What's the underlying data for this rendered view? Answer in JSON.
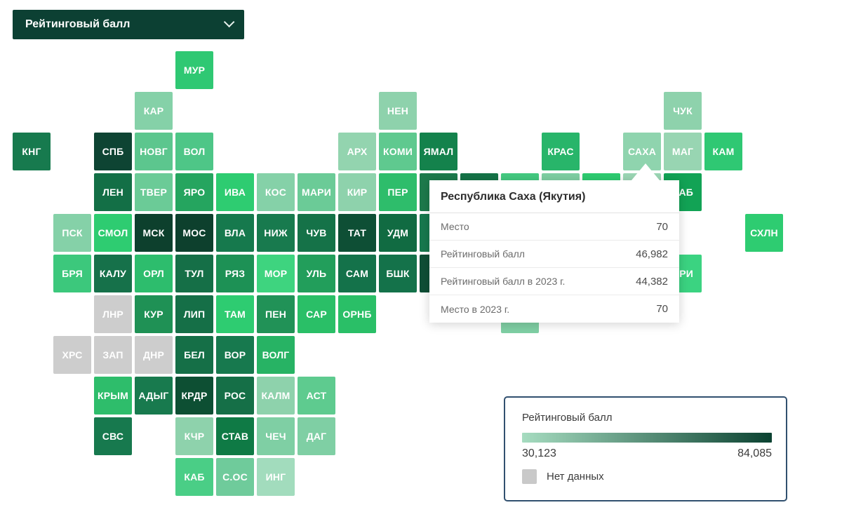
{
  "dropdown": {
    "label": "Рейтинговый балл"
  },
  "tooltip": {
    "title": "Республика Саха (Якутия)",
    "rows": [
      {
        "label": "Место",
        "value": "70"
      },
      {
        "label": "Рейтинговый балл",
        "value": "46,982"
      },
      {
        "label": "Рейтинговый балл в 2023 г.",
        "value": "44,382"
      },
      {
        "label": "Место в 2023 г.",
        "value": "70"
      }
    ]
  },
  "legend": {
    "title": "Рейтинговый балл",
    "min_label": "30,123",
    "max_label": "84,085",
    "no_data_label": "Нет данных",
    "gradient_start": "#a6dcc0",
    "gradient_end": "#0b4231",
    "no_data_color": "#c9c9c9"
  },
  "chart_data": {
    "type": "heatmap",
    "subtype": "tile-cartogram",
    "title": "Рейтинговый балл",
    "colorscale": {
      "min": 30123,
      "max": 84085,
      "min_label": "30,123",
      "max_label": "84,085",
      "start_color": "#a6dcc0",
      "end_color": "#0b4231",
      "no_data_color": "#c9c9c9"
    },
    "selected_region": {
      "name": "Республика Саха (Якутия)",
      "place": "70",
      "score": "46,982",
      "score_2023": "44,382",
      "place_2023": "70"
    },
    "regions": [
      {
        "code": "МУР",
        "col": 4,
        "row": 0,
        "color": "#2fc873"
      },
      {
        "code": "КАР",
        "col": 3,
        "row": 1,
        "color": "#85d1a8"
      },
      {
        "code": "НЕН",
        "col": 9,
        "row": 1,
        "color": "#8ed2ac"
      },
      {
        "code": "ЧУК",
        "col": 16,
        "row": 1,
        "color": "#8ed2ac"
      },
      {
        "code": "КНГ",
        "col": 0,
        "row": 2,
        "color": "#177a4e"
      },
      {
        "code": "СПБ",
        "col": 2,
        "row": 2,
        "color": "#0e4433"
      },
      {
        "code": "НОВГ",
        "col": 3,
        "row": 2,
        "color": "#5cc68e"
      },
      {
        "code": "ВОЛ",
        "col": 4,
        "row": 2,
        "color": "#4ec687"
      },
      {
        "code": "АРХ",
        "col": 8,
        "row": 2,
        "color": "#93d4af"
      },
      {
        "code": "КОМИ",
        "col": 9,
        "row": 2,
        "color": "#5fc98f"
      },
      {
        "code": "ЯМАЛ",
        "col": 10,
        "row": 2,
        "color": "#14824c"
      },
      {
        "code": "КРАС",
        "col": 13,
        "row": 2,
        "color": "#28b56a"
      },
      {
        "code": "САХА",
        "col": 15,
        "row": 2,
        "color": "#8fd4ae"
      },
      {
        "code": "МАГ",
        "col": 16,
        "row": 2,
        "color": "#98d5b2"
      },
      {
        "code": "КАМ",
        "col": 17,
        "row": 2,
        "color": "#2fc873"
      },
      {
        "code": "ЛЕН",
        "col": 2,
        "row": 3,
        "color": "#136f46"
      },
      {
        "code": "ТВЕР",
        "col": 3,
        "row": 3,
        "color": "#6bcb97"
      },
      {
        "code": "ЯРО",
        "col": 4,
        "row": 3,
        "color": "#25a55f"
      },
      {
        "code": "ИВА",
        "col": 5,
        "row": 3,
        "color": "#2ecc71"
      },
      {
        "code": "КОС",
        "col": 6,
        "row": 3,
        "color": "#85d1a8"
      },
      {
        "code": "МАРИ",
        "col": 7,
        "row": 3,
        "color": "#6bcb97"
      },
      {
        "code": "КИР",
        "col": 8,
        "row": 3,
        "color": "#8ed2ac"
      },
      {
        "code": "ПЕР",
        "col": 9,
        "row": 3,
        "color": "#2ebd6b"
      },
      {
        "code": "",
        "col": 10,
        "row": 3,
        "color": "#1d7a4c"
      },
      {
        "code": "",
        "col": 11,
        "row": 3,
        "color": "#157347"
      },
      {
        "code": "",
        "col": 12,
        "row": 3,
        "color": "#44ca81"
      },
      {
        "code": "",
        "col": 13,
        "row": 3,
        "color": "#7fd0a3"
      },
      {
        "code": "",
        "col": 14,
        "row": 3,
        "color": "#2ecc71"
      },
      {
        "code": "",
        "col": 15,
        "row": 3,
        "color": "#9cd7b5"
      },
      {
        "code": "ХАБ",
        "col": 16,
        "row": 3,
        "color": "#12a355"
      },
      {
        "code": "ПСК",
        "col": 1,
        "row": 4,
        "color": "#85d1a8"
      },
      {
        "code": "СМОЛ",
        "col": 2,
        "row": 4,
        "color": "#2ecc71"
      },
      {
        "code": "МСК",
        "col": 3,
        "row": 4,
        "color": "#0d402d"
      },
      {
        "code": "МОС",
        "col": 4,
        "row": 4,
        "color": "#0d402d"
      },
      {
        "code": "ВЛА",
        "col": 5,
        "row": 4,
        "color": "#16794d"
      },
      {
        "code": "НИЖ",
        "col": 6,
        "row": 4,
        "color": "#187a4e"
      },
      {
        "code": "ЧУВ",
        "col": 7,
        "row": 4,
        "color": "#157248"
      },
      {
        "code": "ТАТ",
        "col": 8,
        "row": 4,
        "color": "#0e4f35"
      },
      {
        "code": "УДМ",
        "col": 9,
        "row": 4,
        "color": "#116b42"
      },
      {
        "code": "",
        "col": 10,
        "row": 4,
        "color": "#17794e"
      },
      {
        "code": "СХЛН",
        "col": 18,
        "row": 4,
        "color": "#2ecc71"
      },
      {
        "code": "БРЯ",
        "col": 1,
        "row": 5,
        "color": "#3cc87c"
      },
      {
        "code": "КАЛУ",
        "col": 2,
        "row": 5,
        "color": "#16714a"
      },
      {
        "code": "ОРЛ",
        "col": 3,
        "row": 5,
        "color": "#2dbd6d"
      },
      {
        "code": "ТУЛ",
        "col": 4,
        "row": 5,
        "color": "#156f47"
      },
      {
        "code": "РЯЗ",
        "col": 5,
        "row": 5,
        "color": "#1d9155"
      },
      {
        "code": "МОР",
        "col": 6,
        "row": 5,
        "color": "#3ed47f"
      },
      {
        "code": "УЛЬ",
        "col": 7,
        "row": 5,
        "color": "#229e5b"
      },
      {
        "code": "САМ",
        "col": 8,
        "row": 5,
        "color": "#14724a"
      },
      {
        "code": "БШК",
        "col": 9,
        "row": 5,
        "color": "#14724a"
      },
      {
        "code": "",
        "col": 10,
        "row": 5,
        "color": "#0f4f36"
      },
      {
        "code": "ПРИ",
        "col": 16,
        "row": 5,
        "color": "#3bd381"
      },
      {
        "code": "ЛНР",
        "col": 2,
        "row": 6,
        "color": "#cdcdcd"
      },
      {
        "code": "КУР",
        "col": 3,
        "row": 6,
        "color": "#1f9155"
      },
      {
        "code": "ЛИП",
        "col": 4,
        "row": 6,
        "color": "#156f47"
      },
      {
        "code": "ТАМ",
        "col": 5,
        "row": 6,
        "color": "#2ecc71"
      },
      {
        "code": "ПЕН",
        "col": 6,
        "row": 6,
        "color": "#219257"
      },
      {
        "code": "САР",
        "col": 7,
        "row": 6,
        "color": "#2abf67"
      },
      {
        "code": "ОРНБ",
        "col": 8,
        "row": 6,
        "color": "#2abf67"
      },
      {
        "code": "",
        "col": 12,
        "row": 6,
        "color": "#7fcfa4"
      },
      {
        "code": "ХРС",
        "col": 1,
        "row": 7,
        "color": "#cdcdcd"
      },
      {
        "code": "ЗАП",
        "col": 2,
        "row": 7,
        "color": "#cdcdcd"
      },
      {
        "code": "ДНР",
        "col": 3,
        "row": 7,
        "color": "#cdcdcd"
      },
      {
        "code": "БЕЛ",
        "col": 4,
        "row": 7,
        "color": "#156f47"
      },
      {
        "code": "ВОР",
        "col": 5,
        "row": 7,
        "color": "#17794e"
      },
      {
        "code": "ВОЛГ",
        "col": 6,
        "row": 7,
        "color": "#27b364"
      },
      {
        "code": "КРЫМ",
        "col": 2,
        "row": 8,
        "color": "#2ebd6b"
      },
      {
        "code": "АДЫГ",
        "col": 3,
        "row": 8,
        "color": "#187a4e"
      },
      {
        "code": "КРДР",
        "col": 4,
        "row": 8,
        "color": "#0d4f33"
      },
      {
        "code": "РОС",
        "col": 5,
        "row": 8,
        "color": "#156f47"
      },
      {
        "code": "КАЛМ",
        "col": 6,
        "row": 8,
        "color": "#8ed2ac"
      },
      {
        "code": "АСТ",
        "col": 7,
        "row": 8,
        "color": "#5ecb8f"
      },
      {
        "code": "СВС",
        "col": 2,
        "row": 9,
        "color": "#17794e"
      },
      {
        "code": "КЧР",
        "col": 4,
        "row": 9,
        "color": "#8ed2ac"
      },
      {
        "code": "СТАВ",
        "col": 5,
        "row": 9,
        "color": "#0f7a45"
      },
      {
        "code": "ЧЕЧ",
        "col": 6,
        "row": 9,
        "color": "#7fcfa4"
      },
      {
        "code": "ДАГ",
        "col": 7,
        "row": 9,
        "color": "#7fcfa4"
      },
      {
        "code": "КАБ",
        "col": 4,
        "row": 10,
        "color": "#4ace86"
      },
      {
        "code": "С.ОС",
        "col": 5,
        "row": 10,
        "color": "#6fcb9b"
      },
      {
        "code": "ИНГ",
        "col": 6,
        "row": 10,
        "color": "#a2dcbd"
      }
    ]
  }
}
